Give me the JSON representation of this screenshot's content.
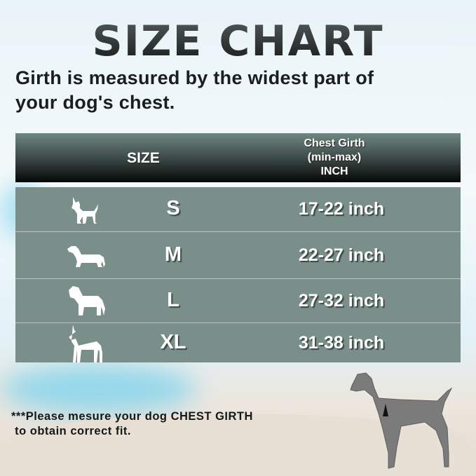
{
  "title": "SIZE CHART",
  "subtitle_line1": "Girth is measured by the widest part of",
  "subtitle_line2": "your dog's chest.",
  "table": {
    "header": {
      "size": "SIZE",
      "girth_line1": "Chest Girth",
      "girth_line2": "(min-max)",
      "girth_line3": "INCH"
    },
    "rows": [
      {
        "size": "S",
        "girth": "17-22 inch",
        "icon": "chihuahua-icon"
      },
      {
        "size": "M",
        "girth": "22-27 inch",
        "icon": "dachshund-icon"
      },
      {
        "size": "L",
        "girth": "27-32 inch",
        "icon": "mastiff-icon"
      },
      {
        "size": "XL",
        "girth": "31-38 inch",
        "icon": "great-dane-icon"
      }
    ],
    "row_color": "#7a8f89"
  },
  "note_line1": "***Please mesure your dog CHEST GIRTH",
  "note_line2": " to obtain correct fit."
}
